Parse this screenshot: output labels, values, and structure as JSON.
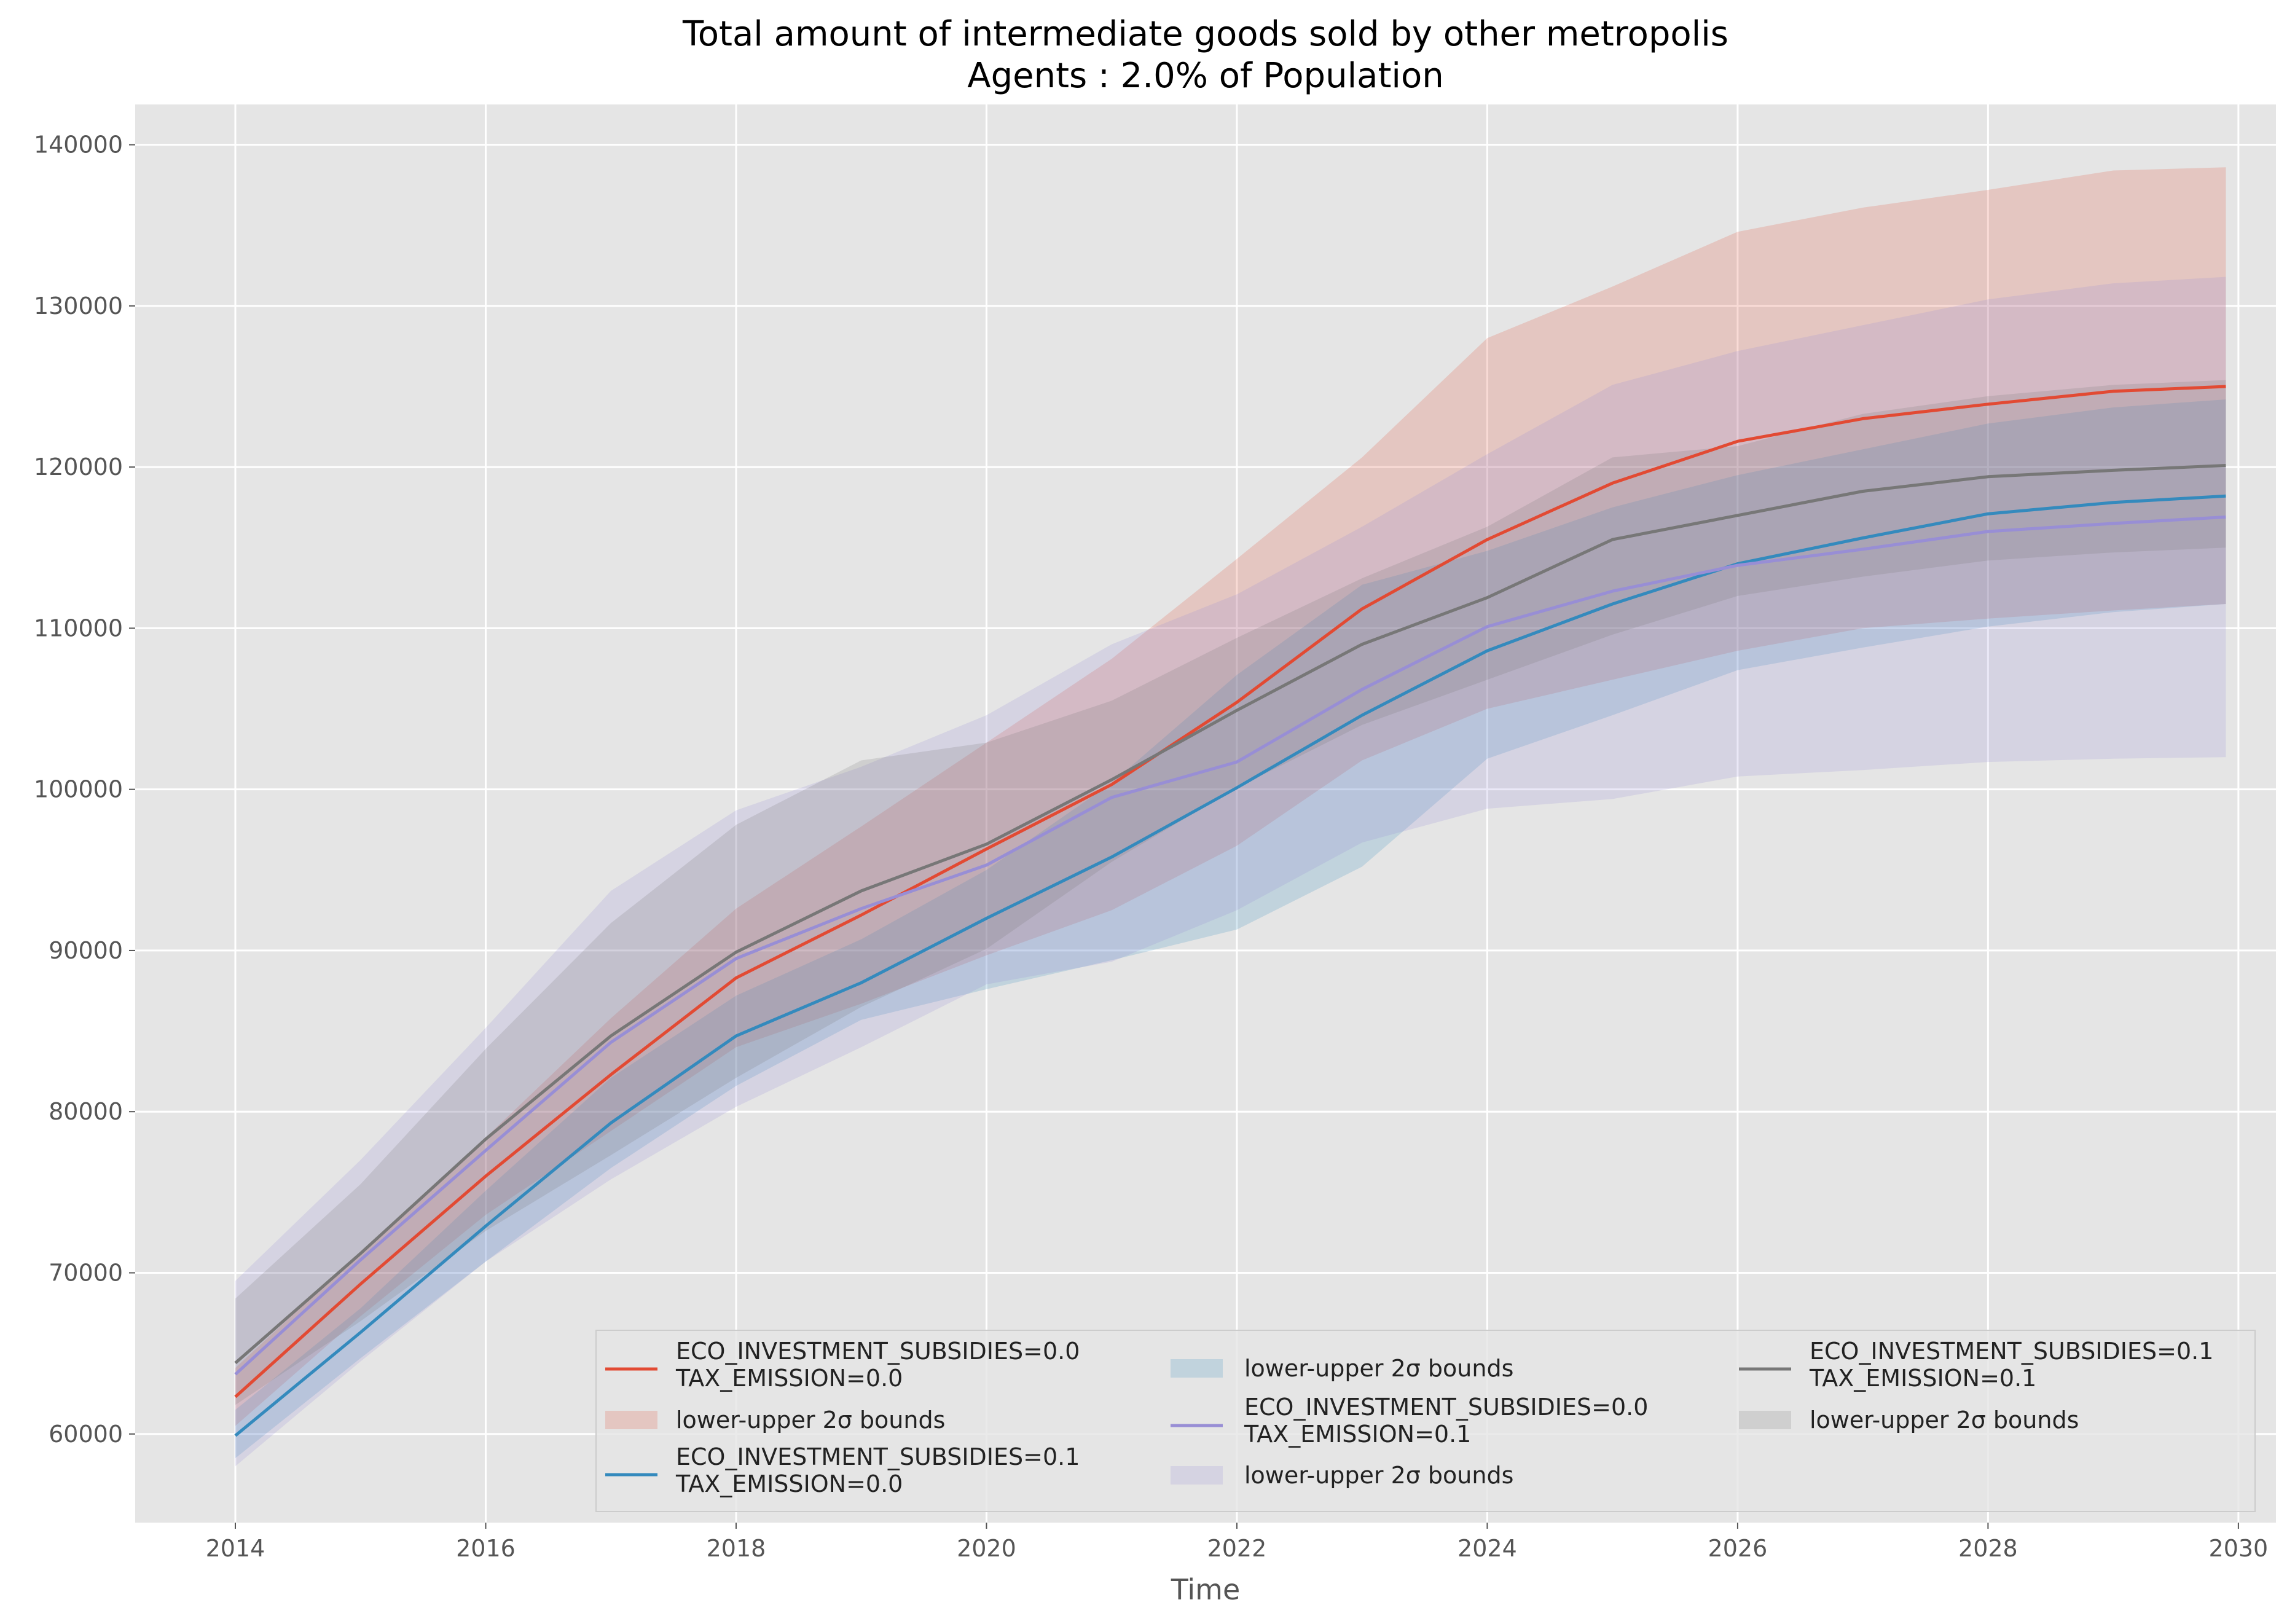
{
  "chart_data": {
    "type": "line",
    "title": "Total amount of intermediate goods sold by other metropolis",
    "subtitle": "Agents : 2.0% of Population",
    "xlabel": "Time",
    "ylabel": "",
    "xlim": [
      2013.2,
      2030.3
    ],
    "ylim": [
      54500,
      142500
    ],
    "xticks": [
      2014,
      2016,
      2018,
      2020,
      2022,
      2024,
      2026,
      2028,
      2030
    ],
    "xtick_labels": [
      "2014",
      "2016",
      "2018",
      "2020",
      "2022",
      "2024",
      "2026",
      "2028",
      "2030"
    ],
    "yticks": [
      60000,
      70000,
      80000,
      90000,
      100000,
      110000,
      120000,
      130000,
      140000
    ],
    "ytick_labels": [
      "60000",
      "70000",
      "80000",
      "90000",
      "100000",
      "110000",
      "120000",
      "130000",
      "140000"
    ],
    "grid": true,
    "legend_position": "bottom-right",
    "band_label": "lower-upper 2σ bounds",
    "x": [
      2014,
      2015,
      2016,
      2017,
      2018,
      2019,
      2020,
      2021,
      2022,
      2023,
      2024,
      2025,
      2026,
      2027,
      2028,
      2029,
      2029.9
    ],
    "series": [
      {
        "name": "ECO_INVESTMENT_SUBSIDIES=0.0",
        "name2": "TAX_EMISSION=0.0",
        "color": "#E24A33",
        "values": [
          62300,
          69300,
          76000,
          82300,
          88300,
          92200,
          96300,
          100300,
          105400,
          111200,
          115500,
          119000,
          121600,
          123000,
          123900,
          124700,
          125000
        ],
        "lower": [
          60500,
          67300,
          73600,
          78800,
          84000,
          86700,
          89700,
          92500,
          96500,
          101800,
          105000,
          106800,
          108600,
          110000,
          110600,
          111100,
          111500
        ],
        "upper": [
          64100,
          71300,
          78400,
          85800,
          92600,
          97700,
          102900,
          108100,
          114300,
          120600,
          128000,
          131200,
          134600,
          136100,
          137200,
          138400,
          138600
        ]
      },
      {
        "name": "ECO_INVESTMENT_SUBSIDIES=0.1",
        "name2": "TAX_EMISSION=0.0",
        "color": "#348ABD",
        "values": [
          59900,
          66300,
          72900,
          79300,
          84700,
          88000,
          92000,
          95800,
          100100,
          104600,
          108600,
          111500,
          114000,
          115600,
          117100,
          117800,
          118200
        ],
        "lower": [
          58500,
          64700,
          70700,
          76500,
          81600,
          85700,
          87600,
          89400,
          91300,
          95200,
          101900,
          104600,
          107400,
          108800,
          110100,
          111000,
          111500
        ],
        "upper": [
          61500,
          67800,
          75100,
          82100,
          87200,
          90700,
          95000,
          100400,
          107100,
          112700,
          114800,
          117500,
          119500,
          121100,
          122700,
          123700,
          124200
        ]
      },
      {
        "name": "ECO_INVESTMENT_SUBSIDIES=0.0",
        "name2": "TAX_EMISSION=0.1",
        "color": "#988ED5",
        "values": [
          63700,
          70800,
          77600,
          84300,
          89500,
          92600,
          95300,
          99500,
          101700,
          106200,
          110100,
          112300,
          113900,
          114900,
          116000,
          116500,
          116900
        ],
        "lower": [
          58000,
          64500,
          70700,
          75800,
          80300,
          84000,
          87900,
          89300,
          92500,
          96700,
          98800,
          99400,
          100800,
          101200,
          101700,
          101900,
          102000
        ],
        "upper": [
          69500,
          77000,
          85200,
          93700,
          98700,
          101400,
          104600,
          109000,
          112100,
          116300,
          120800,
          125100,
          127200,
          128800,
          130400,
          131400,
          131800
        ]
      },
      {
        "name": "ECO_INVESTMENT_SUBSIDIES=0.1",
        "name2": "TAX_EMISSION=0.1",
        "color": "#777777",
        "values": [
          64400,
          71200,
          78300,
          84700,
          89900,
          93700,
          96600,
          100600,
          104900,
          109000,
          111900,
          115500,
          117000,
          118500,
          119400,
          119800,
          120100
        ],
        "lower": [
          61800,
          67000,
          72600,
          77300,
          82100,
          86500,
          90100,
          95500,
          100100,
          104000,
          106800,
          109600,
          112000,
          113200,
          114200,
          114700,
          115000
        ],
        "upper": [
          68400,
          75500,
          83900,
          91700,
          97800,
          101800,
          102900,
          105500,
          109400,
          113100,
          116300,
          120600,
          121300,
          123300,
          124400,
          125100,
          125400
        ]
      }
    ]
  }
}
